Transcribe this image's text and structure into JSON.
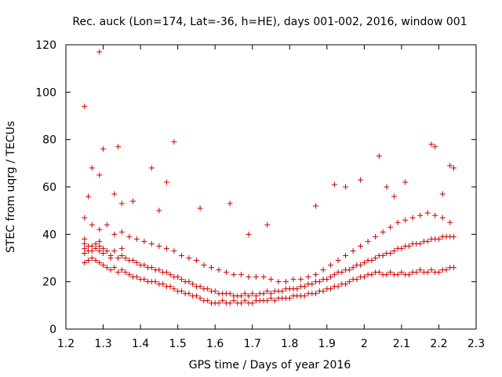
{
  "chart_data": {
    "type": "scatter",
    "title": "Rec. auck (Lon=174, Lat=-36, h=HE), days 001-002, 2016, window 001",
    "xlabel": "GPS time / Days of year 2016",
    "ylabel": "STEC from uqrg / TECUs",
    "xlim": [
      1.2,
      2.3
    ],
    "ylim": [
      0,
      120
    ],
    "xticks": [
      "1.2",
      "1.3",
      "1.4",
      "1.5",
      "1.6",
      "1.7",
      "1.8",
      "1.9",
      "2",
      "2.1",
      "2.2",
      "2.3"
    ],
    "yticks": [
      "0",
      "20",
      "40",
      "60",
      "80",
      "100",
      "120"
    ],
    "marker": "+",
    "color": "#cc0000",
    "grid": false,
    "series": [
      {
        "name": "STEC",
        "x": [
          1.25,
          1.25,
          1.25,
          1.25,
          1.26,
          1.26,
          1.27,
          1.27,
          1.28,
          1.28,
          1.29,
          1.29,
          1.29,
          1.3,
          1.3,
          1.31,
          1.32,
          1.32,
          1.33,
          1.34,
          1.35,
          1.35,
          1.36,
          1.37,
          1.38,
          1.39,
          1.4,
          1.41,
          1.42,
          1.43,
          1.44,
          1.45,
          1.46,
          1.47,
          1.48,
          1.49,
          1.5,
          1.51,
          1.52,
          1.53,
          1.54,
          1.55,
          1.56,
          1.57,
          1.58,
          1.59,
          1.6,
          1.61,
          1.62,
          1.63,
          1.64,
          1.65,
          1.66,
          1.67,
          1.68,
          1.69,
          1.7,
          1.71,
          1.72,
          1.73,
          1.74,
          1.75,
          1.76,
          1.77,
          1.78,
          1.79,
          1.8,
          1.81,
          1.82,
          1.83,
          1.84,
          1.85,
          1.86,
          1.87,
          1.88,
          1.89,
          1.9,
          1.91,
          1.92,
          1.93,
          1.94,
          1.95,
          1.96,
          1.97,
          1.98,
          1.99,
          2.0,
          2.01,
          2.02,
          2.03,
          2.04,
          2.05,
          2.06,
          2.07,
          2.08,
          2.09,
          2.1,
          2.11,
          2.12,
          2.13,
          2.14,
          2.15,
          2.16,
          2.17,
          2.18,
          2.19,
          2.2,
          2.21,
          2.22,
          2.23,
          2.24,
          1.25,
          1.26,
          1.27,
          1.28,
          1.29,
          1.3,
          1.31,
          1.32,
          1.33,
          1.34,
          1.35,
          1.36,
          1.37,
          1.38,
          1.39,
          1.4,
          1.41,
          1.42,
          1.43,
          1.44,
          1.45,
          1.46,
          1.47,
          1.48,
          1.49,
          1.5,
          1.51,
          1.52,
          1.53,
          1.54,
          1.55,
          1.56,
          1.57,
          1.58,
          1.59,
          1.6,
          1.61,
          1.62,
          1.63,
          1.64,
          1.65,
          1.66,
          1.67,
          1.68,
          1.69,
          1.7,
          1.71,
          1.72,
          1.73,
          1.74,
          1.75,
          1.76,
          1.77,
          1.78,
          1.79,
          1.8,
          1.81,
          1.82,
          1.83,
          1.84,
          1.85,
          1.86,
          1.87,
          1.88,
          1.89,
          1.9,
          1.91,
          1.92,
          1.93,
          1.94,
          1.95,
          1.96,
          1.97,
          1.98,
          1.99,
          2.0,
          2.01,
          2.02,
          2.03,
          2.04,
          2.05,
          2.06,
          2.07,
          2.08,
          2.09,
          2.1,
          2.11,
          2.12,
          2.13,
          2.14,
          2.15,
          2.16,
          2.17,
          2.18,
          2.19,
          2.2,
          2.21,
          2.22,
          2.23,
          2.24,
          1.25,
          1.27,
          1.29,
          1.31,
          1.33,
          1.35,
          1.37,
          1.39,
          1.41,
          1.43,
          1.45,
          1.47,
          1.49,
          1.51,
          1.53,
          1.55,
          1.57,
          1.59,
          1.61,
          1.63,
          1.65,
          1.67,
          1.69,
          1.71,
          1.73,
          1.75,
          1.77,
          1.79,
          1.81,
          1.83,
          1.85,
          1.87,
          1.89,
          1.91,
          1.93,
          1.95,
          1.97,
          1.99,
          2.01,
          2.03,
          2.05,
          2.07,
          2.09,
          2.11,
          2.13,
          2.15,
          2.17,
          2.19,
          2.21,
          2.23,
          1.25,
          1.26,
          1.27,
          1.29,
          1.29,
          1.3,
          1.33,
          1.34,
          1.35,
          1.38,
          1.43,
          1.45,
          1.47,
          1.49,
          1.56,
          1.64,
          1.69,
          1.74,
          1.87,
          1.92,
          1.95,
          1.99,
          2.04,
          2.06,
          2.08,
          2.11,
          2.18,
          2.19,
          2.21,
          2.23,
          2.24
        ],
        "y": [
          38,
          36,
          34,
          32,
          35,
          33,
          35,
          33,
          36,
          34,
          37,
          35,
          33,
          34,
          32,
          33,
          31,
          30,
          33,
          30,
          34,
          31,
          30,
          29,
          29,
          28,
          27,
          27,
          26,
          26,
          25,
          25,
          24,
          24,
          23,
          22,
          22,
          21,
          20,
          20,
          19,
          18,
          18,
          17,
          17,
          16,
          16,
          15,
          15,
          15,
          15,
          14,
          14,
          14,
          15,
          14,
          15,
          14,
          15,
          15,
          16,
          15,
          16,
          16,
          16,
          17,
          17,
          17,
          17,
          18,
          18,
          19,
          19,
          20,
          20,
          21,
          21,
          22,
          23,
          24,
          24,
          25,
          25,
          26,
          27,
          27,
          28,
          29,
          29,
          30,
          31,
          31,
          32,
          32,
          33,
          34,
          34,
          35,
          35,
          36,
          36,
          36,
          37,
          37,
          38,
          38,
          38,
          39,
          39,
          39,
          39,
          28,
          29,
          30,
          29,
          28,
          27,
          26,
          25,
          26,
          24,
          25,
          24,
          23,
          22,
          22,
          21,
          21,
          20,
          20,
          20,
          19,
          19,
          18,
          18,
          17,
          16,
          16,
          15,
          15,
          14,
          14,
          13,
          12,
          12,
          11,
          11,
          11,
          12,
          11,
          11,
          12,
          11,
          11,
          12,
          11,
          11,
          12,
          12,
          12,
          12,
          13,
          12,
          13,
          13,
          13,
          13,
          14,
          14,
          14,
          14,
          15,
          15,
          15,
          16,
          16,
          17,
          17,
          18,
          18,
          19,
          19,
          20,
          21,
          21,
          22,
          22,
          23,
          23,
          24,
          24,
          23,
          23,
          24,
          23,
          23,
          24,
          23,
          23,
          24,
          24,
          25,
          24,
          24,
          25,
          24,
          24,
          25,
          25,
          26,
          26,
          47,
          44,
          42,
          44,
          40,
          41,
          39,
          38,
          37,
          36,
          35,
          34,
          33,
          31,
          30,
          29,
          27,
          26,
          25,
          24,
          23,
          23,
          22,
          22,
          22,
          21,
          20,
          20,
          21,
          21,
          22,
          23,
          25,
          27,
          29,
          31,
          33,
          35,
          37,
          39,
          41,
          43,
          45,
          46,
          47,
          48,
          49,
          48,
          47,
          45,
          94,
          56,
          68,
          117,
          65,
          76,
          57,
          77,
          53,
          54,
          68,
          50,
          62,
          79,
          51,
          53,
          40,
          44,
          52,
          61,
          60,
          63,
          73,
          60,
          56,
          62,
          78,
          77,
          57,
          69,
          68
        ]
      }
    ]
  }
}
